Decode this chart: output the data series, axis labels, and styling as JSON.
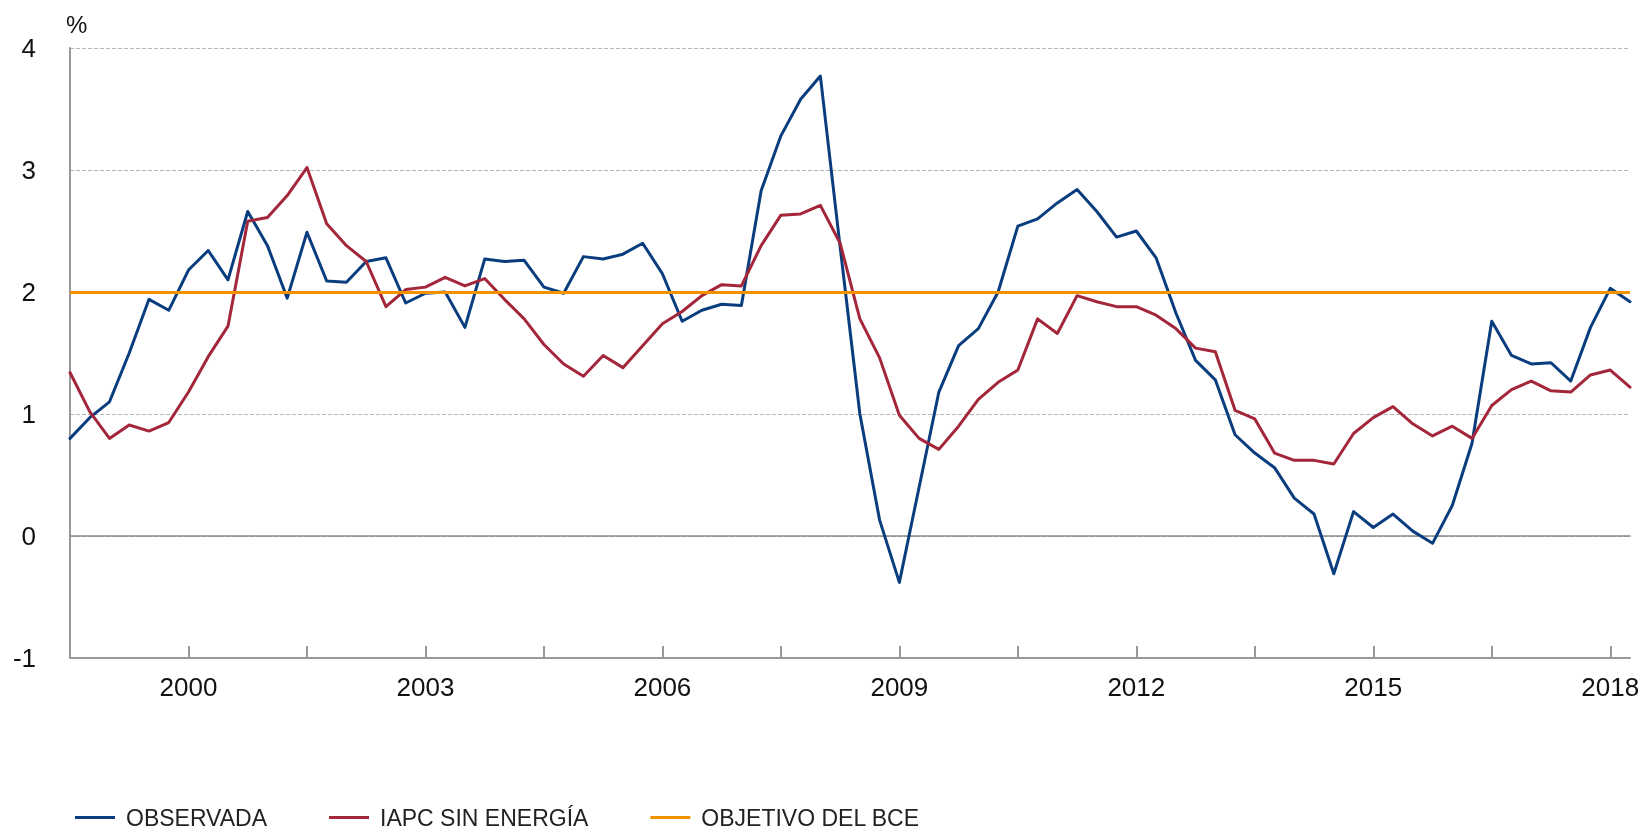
{
  "chart_data": {
    "type": "line",
    "ylabel": "%",
    "x": [
      1998.5,
      1998.75,
      1999,
      1999.25,
      1999.5,
      1999.75,
      2000,
      2000.25,
      2000.5,
      2000.75,
      2001,
      2001.25,
      2001.5,
      2001.75,
      2002,
      2002.25,
      2002.5,
      2002.75,
      2003,
      2003.25,
      2003.5,
      2003.75,
      2004,
      2004.25,
      2004.5,
      2004.75,
      2005,
      2005.25,
      2005.5,
      2005.75,
      2006,
      2006.25,
      2006.5,
      2006.75,
      2007,
      2007.25,
      2007.5,
      2007.75,
      2008,
      2008.25,
      2008.5,
      2008.75,
      2009,
      2009.25,
      2009.5,
      2009.75,
      2010,
      2010.25,
      2010.5,
      2010.75,
      2011,
      2011.25,
      2011.5,
      2011.75,
      2012,
      2012.25,
      2012.5,
      2012.75,
      2013,
      2013.25,
      2013.5,
      2013.75,
      2014,
      2014.25,
      2014.5,
      2014.75,
      2015,
      2015.25,
      2015.5,
      2015.75,
      2016,
      2016.25,
      2016.5,
      2016.75,
      2017,
      2017.25,
      2017.5,
      2017.75,
      2018,
      2018.25
    ],
    "series": [
      {
        "name": "OBSERVADA",
        "color": "#0a3d7e",
        "values": [
          0.8,
          0.97,
          1.1,
          1.5,
          1.94,
          1.85,
          2.18,
          2.34,
          2.1,
          2.66,
          2.38,
          1.95,
          2.49,
          2.09,
          2.08,
          2.25,
          2.28,
          1.91,
          1.99,
          2.0,
          1.71,
          2.27,
          2.25,
          2.26,
          2.04,
          1.99,
          2.29,
          2.27,
          2.31,
          2.4,
          2.15,
          1.76,
          1.85,
          1.9,
          1.89,
          2.83,
          3.28,
          3.58,
          3.77,
          2.37,
          1.0,
          0.13,
          -0.38,
          0.4,
          1.18,
          1.56,
          1.7,
          2.0,
          2.54,
          2.6,
          2.73,
          2.84,
          2.66,
          2.45,
          2.5,
          2.28,
          1.83,
          1.44,
          1.28,
          0.83,
          0.68,
          0.56,
          0.31,
          0.18,
          -0.31,
          0.2,
          0.07,
          0.18,
          0.04,
          -0.06,
          0.25,
          0.76,
          1.76,
          1.48,
          1.41,
          1.42,
          1.27,
          1.71,
          2.03,
          1.92
        ]
      },
      {
        "name": "IAPC SIN ENERGÍA",
        "color": "#a3263a",
        "values": [
          1.34,
          1.02,
          0.8,
          0.91,
          0.86,
          0.93,
          1.18,
          1.47,
          1.72,
          2.58,
          2.61,
          2.79,
          3.02,
          2.56,
          2.38,
          2.25,
          1.88,
          2.02,
          2.04,
          2.12,
          2.05,
          2.11,
          1.94,
          1.78,
          1.57,
          1.41,
          1.31,
          1.48,
          1.38,
          1.56,
          1.74,
          1.84,
          1.97,
          2.06,
          2.05,
          2.38,
          2.63,
          2.64,
          2.71,
          2.4,
          1.78,
          1.46,
          0.99,
          0.8,
          0.71,
          0.9,
          1.12,
          1.26,
          1.36,
          1.78,
          1.66,
          1.97,
          1.92,
          1.88,
          1.88,
          1.81,
          1.7,
          1.54,
          1.51,
          1.03,
          0.96,
          0.68,
          0.62,
          0.62,
          0.59,
          0.84,
          0.97,
          1.06,
          0.92,
          0.82,
          0.9,
          0.8,
          1.07,
          1.2,
          1.27,
          1.19,
          1.18,
          1.32,
          1.36,
          1.22
        ]
      }
    ],
    "ref_lines": [
      {
        "axis": "y",
        "value": 2,
        "label": "OBJETIVO DEL BCE",
        "color": "#f39200"
      }
    ],
    "xlim": [
      1998.5,
      2018.25
    ],
    "xticks": [
      2000,
      {
        "value": 2001.5,
        "label": null
      },
      2003,
      {
        "value": 2004.5,
        "label": null
      },
      2006,
      {
        "value": 2007.5,
        "label": null
      },
      2009,
      {
        "value": 2010.5,
        "label": null
      },
      2012,
      {
        "value": 2013.5,
        "label": null
      },
      2015,
      {
        "value": 2016.5,
        "label": null
      },
      2018
    ],
    "ylim": [
      -1,
      4
    ],
    "yticks": [
      -1,
      0,
      1,
      2,
      3,
      4
    ],
    "grid": "y",
    "legend": "bottom left",
    "marker": "none",
    "line_style": "solid"
  }
}
